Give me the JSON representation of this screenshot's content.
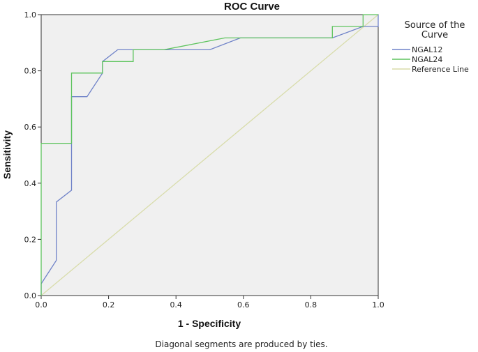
{
  "chart_data": {
    "type": "line",
    "title": "ROC Curve",
    "xlabel": "1 - Specificity",
    "ylabel": "Sensitivity",
    "xlim": [
      0,
      1
    ],
    "ylim": [
      0,
      1
    ],
    "x_ticks": [
      "0.0",
      "0.2",
      "0.4",
      "0.6",
      "0.8",
      "1.0"
    ],
    "y_ticks": [
      "0.0",
      "0.2",
      "0.4",
      "0.6",
      "0.8",
      "1.0"
    ],
    "grid": false,
    "legend": {
      "title_line1": "Source of the",
      "title_line2": "Curve",
      "position": "right"
    },
    "footnote": "Diagonal segments are produced by ties.",
    "series": [
      {
        "name": "NGAL12",
        "color": "#6f82c8",
        "x": [
          0,
          0,
          0.045,
          0.045,
          0.09,
          0.09,
          0.136,
          0.182,
          0.182,
          0.227,
          0.364,
          0.5,
          0.591,
          0.864,
          0.955,
          1.0,
          1.0
        ],
        "y": [
          0,
          0.042,
          0.125,
          0.333,
          0.375,
          0.708,
          0.708,
          0.792,
          0.833,
          0.875,
          0.875,
          0.875,
          0.917,
          0.917,
          0.958,
          0.958,
          1.0
        ]
      },
      {
        "name": "NGAL24",
        "color": "#5ec45e",
        "x": [
          0,
          0,
          0.09,
          0.09,
          0.182,
          0.182,
          0.273,
          0.273,
          0.364,
          0.545,
          0.864,
          0.864,
          0.955,
          0.955,
          1.0
        ],
        "y": [
          0,
          0.542,
          0.542,
          0.792,
          0.792,
          0.833,
          0.833,
          0.875,
          0.875,
          0.917,
          0.917,
          0.958,
          0.958,
          1.0,
          1.0
        ]
      },
      {
        "name": "Reference Line",
        "color": "#d8dcaa",
        "x": [
          0,
          1
        ],
        "y": [
          0,
          1
        ]
      }
    ]
  }
}
